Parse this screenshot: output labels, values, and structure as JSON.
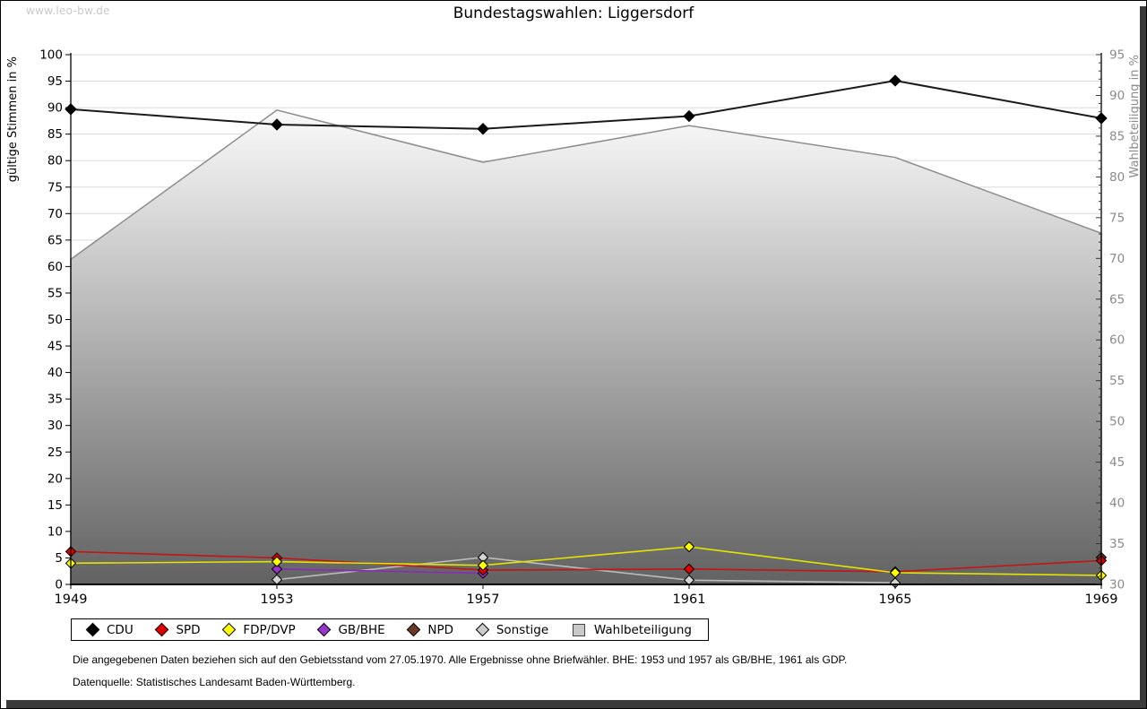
{
  "watermark": "www.leo-bw.de",
  "title": "Bundestagswahlen: Liggersdorf",
  "chart_data": {
    "type": "line",
    "title": "Bundestagswahlen: Liggersdorf",
    "x": [
      1949,
      1953,
      1957,
      1961,
      1965,
      1969
    ],
    "left_axis": {
      "label": "gültige Stimmen in %",
      "min": 0,
      "max": 100,
      "step": 5
    },
    "right_axis": {
      "label": "Wahlbeteiligung in %",
      "min": 30,
      "max": 95,
      "step": 5,
      "minor_step": 1
    },
    "grid": true,
    "legend_position": "bottom",
    "area_series": {
      "name": "Wahlbeteiligung",
      "axis": "right",
      "values": [
        69.9,
        88.2,
        81.8,
        86.3,
        82.4,
        73.1
      ],
      "fill_top": "#fafafa",
      "fill_bottom": "#626262",
      "stroke": "#8c8c8c"
    },
    "series": [
      {
        "name": "Sonstige",
        "axis": "left",
        "line_color": "#bbbbbb",
        "marker_color": "#d4d4d4",
        "values": [
          null,
          0.9,
          5.1,
          0.8,
          0.3,
          null
        ]
      },
      {
        "name": "GB/BHE",
        "axis": "left",
        "line_color": "#8a2bb8",
        "marker_color": "#9933cc",
        "values": [
          null,
          2.9,
          2.1,
          null,
          null,
          null
        ]
      },
      {
        "name": "NPD",
        "axis": "left",
        "line_color": "#6b3a26",
        "marker_color": "#6b3a26",
        "values": [
          null,
          null,
          null,
          null,
          null,
          5.1
        ]
      },
      {
        "name": "SPD",
        "axis": "left",
        "line_color": "#c41414",
        "marker_color": "#e00000",
        "values": [
          6.2,
          5.0,
          2.7,
          2.9,
          2.4,
          4.5
        ]
      },
      {
        "name": "FDP/DVP",
        "axis": "left",
        "line_color": "#e4e400",
        "marker_color": "#ffff00",
        "values": [
          4.0,
          4.3,
          3.6,
          7.1,
          2.2,
          1.7
        ]
      },
      {
        "name": "CDU",
        "axis": "left",
        "line_color": "#1a1a1a",
        "marker_color": "#000000",
        "width": 2,
        "r": 6,
        "values": [
          89.7,
          86.8,
          86.0,
          88.4,
          95.1,
          88.0
        ]
      }
    ]
  },
  "legend": {
    "items": [
      {
        "label": "CDU",
        "color": "#000000",
        "shape": "diamond"
      },
      {
        "label": "SPD",
        "color": "#e00000",
        "shape": "diamond"
      },
      {
        "label": "FDP/DVP",
        "color": "#ffff00",
        "shape": "diamond"
      },
      {
        "label": "GB/BHE",
        "color": "#9933cc",
        "shape": "diamond"
      },
      {
        "label": "NPD",
        "color": "#6b3a26",
        "shape": "diamond"
      },
      {
        "label": "Sonstige",
        "color": "#cccccc",
        "shape": "diamond"
      },
      {
        "label": "Wahlbeteiligung",
        "color": "#c9c9c9",
        "shape": "square"
      }
    ]
  },
  "footnote": "Die angegebenen Daten beziehen sich auf den Gebietsstand vom 27.05.1970. Alle Ergebnisse ohne Briefwähler. BHE: 1953 und 1957 als GB/BHE, 1961 als GDP.",
  "source": "Datenquelle: Statistisches Landesamt Baden-Württemberg."
}
